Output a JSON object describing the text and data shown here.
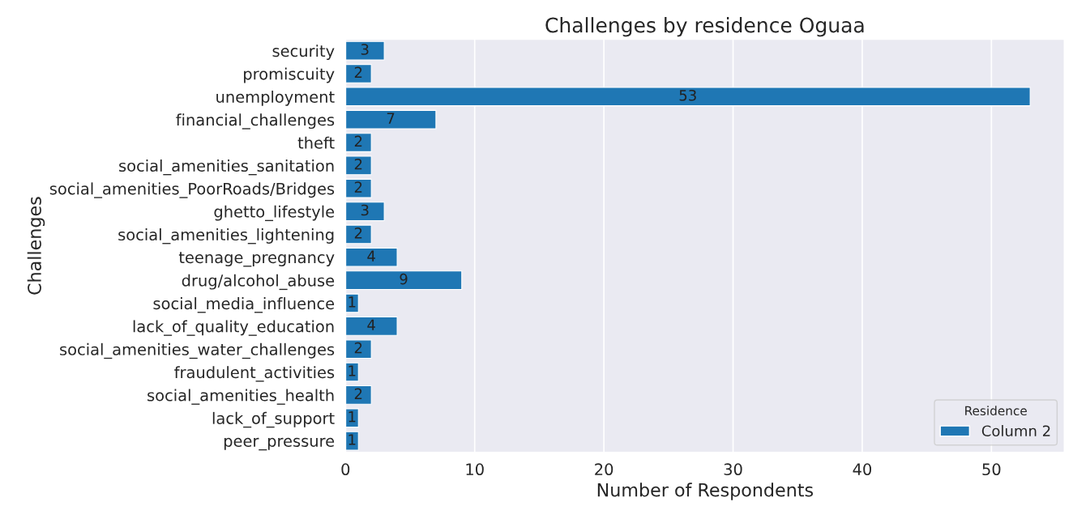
{
  "chart_data": {
    "type": "bar",
    "orientation": "horizontal",
    "title": "Challenges by residence Oguaa",
    "xlabel": "Number of Respondents",
    "ylabel": "Challenges",
    "legend_title": "Residence",
    "categories": [
      "security",
      "promiscuity",
      "unemployment",
      "financial_challenges",
      "theft",
      "social_amenities_sanitation",
      "social_amenities_PoorRoads/Bridges",
      "ghetto_lifestyle",
      "social_amenities_lightening",
      "teenage_pregnancy",
      "drug/alcohol_abuse",
      "social_media_influence",
      "lack_of_quality_education",
      "social_amenities_water_challenges",
      "fraudulent_activities",
      "social_amenities_health",
      "lack_of_support",
      "peer_pressure"
    ],
    "series": [
      {
        "name": "Column 2",
        "color": "#1f77b4",
        "values": [
          3,
          2,
          53,
          7,
          2,
          2,
          2,
          3,
          2,
          4,
          9,
          1,
          4,
          2,
          1,
          2,
          1,
          1
        ]
      }
    ],
    "xlim": [
      0,
      55.65
    ],
    "xticks": [
      0,
      10,
      20,
      30,
      40,
      50
    ],
    "grid": "x",
    "legend": "bottom right",
    "data_labels": true
  }
}
